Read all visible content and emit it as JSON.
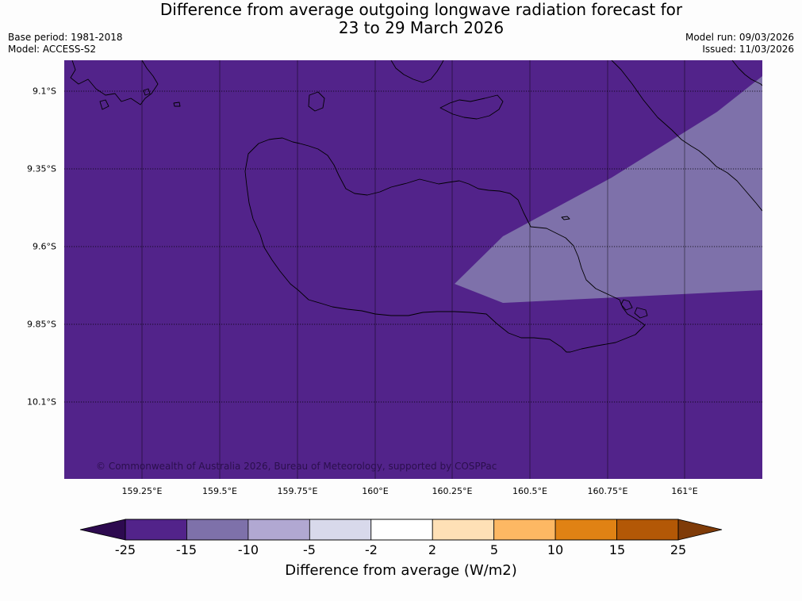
{
  "title": {
    "line1": "Difference from average outgoing longwave radiation forecast for",
    "line2": "23 to 29 March 2026"
  },
  "info": {
    "base_period": "Base period: 1981-2018",
    "model": "Model: ACCESS-S2",
    "model_run": "Model run: 09/03/2026",
    "issued": "Issued: 11/03/2026"
  },
  "map": {
    "copyright": "© Commonwealth of Australia 2026, Bureau of Meteorology, supported by COSPPac",
    "lat_labels": [
      "9.1°S",
      "9.35°S",
      "9.6°S",
      "9.85°S",
      "10.1°S"
    ],
    "lon_labels": [
      "159.25°E",
      "159.5°E",
      "159.75°E",
      "160°E",
      "160.25°E",
      "160.5°E",
      "160.75°E",
      "161°E"
    ],
    "background_color": "#52238a",
    "anomaly_region_color": "#7e71aa",
    "background_anomaly_band": "-25 to -15",
    "region_anomaly_band": "-15 to -10"
  },
  "colorbar": {
    "title": "Difference from average (W/m2)",
    "tick_labels": [
      "-25",
      "-15",
      "-10",
      "-5",
      "-2",
      "2",
      "5",
      "10",
      "15",
      "25"
    ],
    "under_color": "#2d0a4f",
    "over_color": "#7f3b08",
    "bins": [
      {
        "range": "-25 to -15",
        "color": "#52238a"
      },
      {
        "range": "-15 to -10",
        "color": "#7e71aa"
      },
      {
        "range": "-10 to -5",
        "color": "#b1a8d2"
      },
      {
        "range": "-5 to -2",
        "color": "#d8d9eb"
      },
      {
        "range": "-2 to 2",
        "color": "#ffffff"
      },
      {
        "range": "2 to 5",
        "color": "#fee0b6"
      },
      {
        "range": "5 to 10",
        "color": "#fdb863"
      },
      {
        "range": "10 to 15",
        "color": "#e08214"
      },
      {
        "range": "15 to 25",
        "color": "#b35806"
      }
    ]
  }
}
